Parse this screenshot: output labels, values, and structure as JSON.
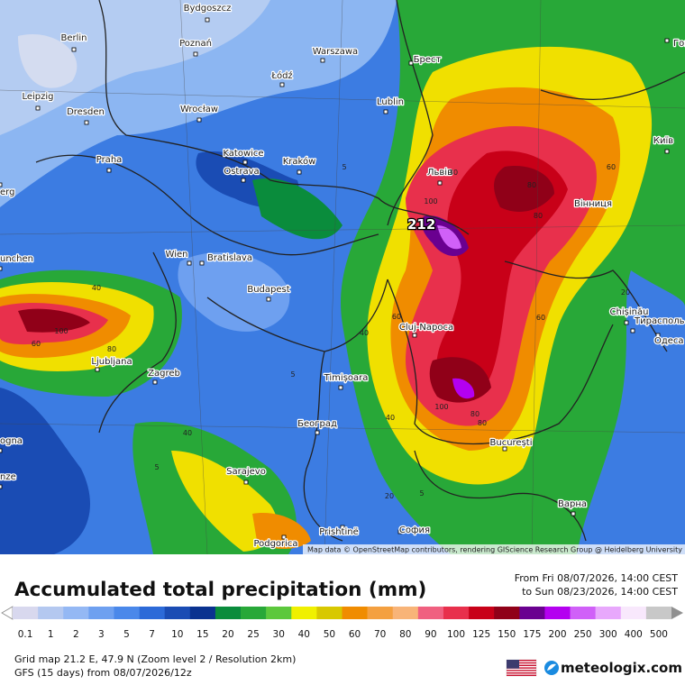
{
  "map": {
    "cities": [
      "Bydgoszcz",
      "Berlin",
      "Poznań",
      "Warszawa",
      "Брест",
      "Łódź",
      "Leipzig",
      "Dresden",
      "Wrocław",
      "Lublin",
      "Katowice",
      "Ostrava",
      "Kraków",
      "Львів",
      "Київ",
      "Гоме",
      "Praha",
      "erg",
      "Вінниця",
      "Wien",
      "Bratislava",
      "unchen",
      "Budapest",
      "Chișinău",
      "Тирасполь",
      "Одеса",
      "Cluj-Napoca",
      "Ljubljana",
      "Zagreb",
      "Timișoara",
      "Београд",
      "București",
      "ogna",
      "nze",
      "Sarajevo",
      "Варна",
      "Prishtinë",
      "София",
      "Podgorica"
    ],
    "peak_label": 212,
    "contour_labels": [
      5,
      5,
      40,
      60,
      80,
      100,
      80,
      40,
      60,
      80,
      100,
      40,
      60,
      100,
      80,
      80,
      40,
      20,
      5,
      20,
      5,
      60,
      30
    ],
    "attribution": "Map data © OpenStreetMap contributors, rendering GIScience Research Group @ Heidelberg University"
  },
  "header": {
    "title": "Accumulated total precipitation (mm)",
    "from": "From Fri 08/07/2026, 14:00 CEST",
    "to": "to Sun 08/23/2026, 14:00 CEST"
  },
  "legend": {
    "values": [
      0.1,
      1,
      2,
      3,
      5,
      7,
      10,
      15,
      20,
      25,
      30,
      40,
      50,
      60,
      70,
      80,
      90,
      100,
      125,
      150,
      175,
      200,
      250,
      300,
      400,
      500
    ],
    "colors": [
      "#d8d8ee",
      "#b4c8f0",
      "#94b8f4",
      "#6ea0f0",
      "#4a88ea",
      "#2c6ad8",
      "#1a4cb4",
      "#0a3290",
      "#0a8c3c",
      "#28a838",
      "#5cc83c",
      "#f0f000",
      "#d8c800",
      "#f08c00",
      "#f4a040",
      "#f8b478",
      "#f06080",
      "#e8304c",
      "#c80018",
      "#900018",
      "#6a0090",
      "#b400f0",
      "#d060f8",
      "#e8a8fc",
      "#f8e8fc",
      "#c8c8c8"
    ]
  },
  "footer": {
    "grid": "Grid map 21.2 E, 47.9 N (Zoom level 2 / Resolution 2km)",
    "model": "GFS (15 days) from  08/07/2026/12z",
    "brand": "meteologix.com"
  }
}
